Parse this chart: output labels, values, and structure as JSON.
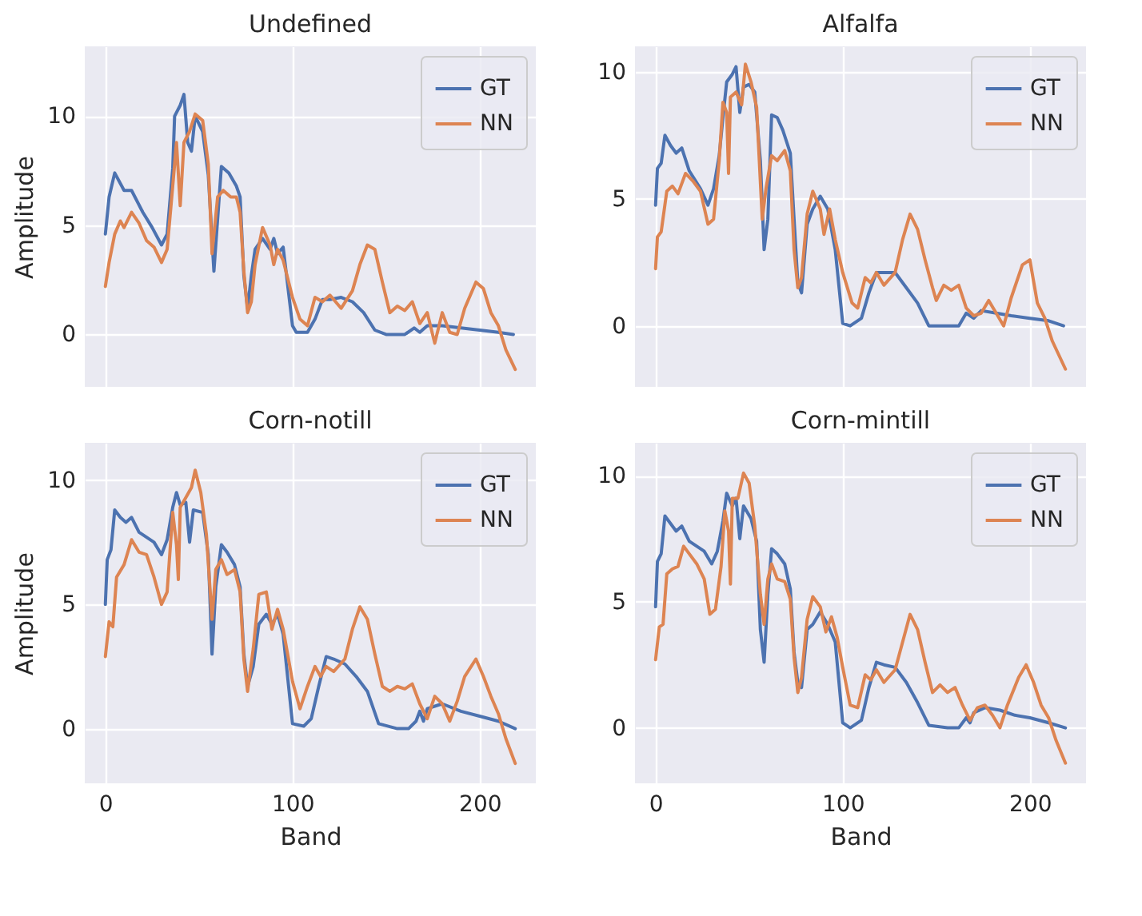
{
  "chart_data": [
    {
      "type": "line",
      "title": "Undefined",
      "ylabel": "Amplitude",
      "xlim": [
        -11,
        230
      ],
      "ylim": [
        -2.4,
        13.2
      ],
      "xticks": [
        0,
        100,
        200
      ],
      "yticks": [
        0,
        5,
        10
      ],
      "grid": true,
      "legend": "top right",
      "tick_labels": "y",
      "series": [
        {
          "name": "GT",
          "color": "#4c72b0",
          "x": [
            0,
            2,
            5,
            10,
            14,
            20,
            25,
            30,
            33,
            36,
            37,
            40,
            42,
            44,
            46,
            48,
            52,
            55,
            58,
            62,
            66,
            70,
            72,
            74,
            76,
            78,
            80,
            84,
            88,
            90,
            92,
            95,
            100,
            102,
            108,
            112,
            116,
            120,
            126,
            132,
            138,
            144,
            150,
            160,
            165,
            168,
            172,
            180,
            190,
            200,
            210,
            218
          ],
          "values": [
            4.6,
            6.3,
            7.4,
            6.6,
            6.6,
            5.6,
            4.9,
            4.1,
            4.6,
            7.6,
            10.0,
            10.5,
            11.0,
            8.8,
            8.4,
            10.0,
            9.3,
            7.3,
            2.9,
            7.7,
            7.4,
            6.8,
            6.3,
            2.7,
            1.2,
            2.7,
            3.9,
            4.4,
            3.9,
            4.4,
            3.7,
            4.0,
            0.4,
            0.1,
            0.1,
            0.7,
            1.6,
            1.6,
            1.7,
            1.5,
            1.0,
            0.2,
            0.0,
            0.0,
            0.3,
            0.1,
            0.4,
            0.4,
            0.3,
            0.2,
            0.1,
            0.0
          ]
        },
        {
          "name": "NN",
          "color": "#dd8452",
          "x": [
            0,
            2,
            5,
            8,
            10,
            14,
            18,
            22,
            26,
            30,
            33,
            36,
            38,
            40,
            42,
            45,
            48,
            52,
            55,
            57,
            60,
            63,
            67,
            70,
            72,
            74,
            76,
            78,
            80,
            84,
            88,
            90,
            92,
            95,
            100,
            104,
            108,
            112,
            116,
            120,
            126,
            132,
            136,
            140,
            144,
            148,
            152,
            156,
            160,
            164,
            168,
            172,
            176,
            180,
            184,
            188,
            192,
            198,
            202,
            206,
            210,
            214,
            219
          ],
          "values": [
            2.2,
            3.3,
            4.6,
            5.2,
            4.9,
            5.6,
            5.1,
            4.3,
            4.0,
            3.3,
            3.9,
            6.8,
            8.8,
            5.9,
            8.8,
            9.3,
            10.1,
            9.8,
            7.8,
            3.7,
            6.3,
            6.6,
            6.3,
            6.3,
            5.6,
            2.9,
            1.0,
            1.5,
            3.2,
            4.9,
            4.1,
            3.2,
            3.9,
            3.4,
            1.7,
            0.7,
            0.4,
            1.7,
            1.5,
            1.8,
            1.2,
            2.0,
            3.2,
            4.1,
            3.9,
            2.4,
            1.0,
            1.3,
            1.1,
            1.5,
            0.5,
            1.0,
            -0.4,
            1.0,
            0.1,
            0.0,
            1.2,
            2.4,
            2.1,
            1.0,
            0.4,
            -0.7,
            -1.6
          ]
        }
      ]
    },
    {
      "type": "line",
      "title": "Alfalfa",
      "xlim": [
        -11,
        230
      ],
      "ylim": [
        -2.4,
        11.0
      ],
      "xticks": [
        0,
        100,
        200
      ],
      "yticks": [
        0,
        5,
        10
      ],
      "grid": true,
      "legend": "top right",
      "tick_labels": "y",
      "series": [
        {
          "name": "GT",
          "color": "#4c72b0",
          "x": [
            0,
            1,
            3,
            5,
            8,
            11,
            14,
            18,
            24,
            28,
            31,
            34,
            36,
            38,
            41,
            43,
            45,
            47,
            50,
            53,
            56,
            58,
            60,
            62,
            65,
            68,
            72,
            74,
            76,
            78,
            81,
            84,
            88,
            92,
            96,
            100,
            104,
            110,
            114,
            118,
            122,
            128,
            134,
            140,
            146,
            156,
            162,
            166,
            170,
            174,
            182,
            190,
            200,
            210,
            218
          ],
          "values": [
            4.75,
            6.2,
            6.4,
            7.5,
            7.1,
            6.8,
            7.0,
            6.1,
            5.4,
            4.75,
            5.4,
            6.7,
            8.2,
            9.6,
            9.9,
            10.2,
            8.4,
            9.4,
            9.5,
            9.2,
            6.5,
            3.0,
            4.2,
            8.3,
            8.2,
            7.7,
            6.8,
            4.2,
            1.7,
            1.3,
            4.0,
            4.6,
            5.1,
            4.6,
            3.0,
            0.1,
            0.0,
            0.3,
            1.3,
            2.1,
            2.1,
            2.1,
            1.5,
            0.9,
            0.0,
            0.0,
            0.0,
            0.5,
            0.3,
            0.6,
            0.5,
            0.4,
            0.3,
            0.2,
            0.0
          ]
        },
        {
          "name": "NN",
          "color": "#dd8452",
          "x": [
            0,
            1,
            3,
            6,
            9,
            12,
            16,
            20,
            24,
            28,
            31,
            34,
            36,
            38,
            39,
            40,
            43,
            46,
            48,
            51,
            54,
            57,
            59,
            62,
            65,
            69,
            72,
            74,
            76,
            78,
            81,
            84,
            88,
            90,
            93,
            96,
            100,
            105,
            108,
            112,
            115,
            118,
            122,
            128,
            132,
            136,
            140,
            144,
            148,
            150,
            154,
            158,
            162,
            166,
            170,
            174,
            178,
            182,
            186,
            190,
            196,
            200,
            204,
            208,
            212,
            219
          ],
          "values": [
            2.25,
            3.5,
            3.7,
            5.3,
            5.5,
            5.2,
            6.0,
            5.7,
            5.3,
            4.0,
            4.2,
            6.5,
            8.8,
            8.4,
            6.0,
            9.0,
            9.2,
            8.7,
            10.3,
            9.6,
            8.6,
            4.2,
            5.4,
            6.7,
            6.5,
            6.9,
            6.1,
            3.0,
            1.5,
            1.9,
            4.4,
            5.3,
            4.6,
            3.6,
            4.6,
            3.4,
            2.1,
            0.9,
            0.7,
            1.9,
            1.7,
            2.1,
            1.6,
            2.1,
            3.4,
            4.4,
            3.8,
            2.6,
            1.5,
            1.0,
            1.6,
            1.4,
            1.6,
            0.7,
            0.4,
            0.5,
            1.0,
            0.5,
            0.0,
            1.1,
            2.4,
            2.6,
            0.9,
            0.3,
            -0.6,
            -1.7
          ]
        }
      ]
    },
    {
      "type": "line",
      "title": "Corn-notill",
      "xlabel": "Band",
      "ylabel": "Amplitude",
      "xlim": [
        -11,
        230
      ],
      "ylim": [
        -2.2,
        11.5
      ],
      "xticks": [
        0,
        100,
        200
      ],
      "yticks": [
        0,
        5,
        10
      ],
      "grid": true,
      "legend": "top right",
      "series": [
        {
          "name": "GT",
          "color": "#4c72b0",
          "x": [
            0,
            1,
            3,
            5,
            8,
            11,
            14,
            18,
            22,
            26,
            30,
            33,
            36,
            38,
            40,
            43,
            45,
            47,
            52,
            55,
            57,
            59,
            62,
            65,
            69,
            72,
            74,
            76,
            79,
            82,
            86,
            89,
            92,
            95,
            100,
            106,
            110,
            114,
            118,
            122,
            128,
            134,
            140,
            146,
            156,
            162,
            166,
            168,
            170,
            172,
            180,
            190,
            200,
            210,
            219
          ],
          "values": [
            5.0,
            6.8,
            7.2,
            8.8,
            8.5,
            8.3,
            8.5,
            7.9,
            7.7,
            7.5,
            7.0,
            7.6,
            8.9,
            9.5,
            9.0,
            9.1,
            7.5,
            8.8,
            8.7,
            7.0,
            3.0,
            5.7,
            7.4,
            7.1,
            6.6,
            5.7,
            3.0,
            1.7,
            2.5,
            4.2,
            4.6,
            4.2,
            4.6,
            3.8,
            0.2,
            0.1,
            0.4,
            1.7,
            2.9,
            2.8,
            2.6,
            2.1,
            1.5,
            0.2,
            0.0,
            0.0,
            0.3,
            0.7,
            0.3,
            0.8,
            1.0,
            0.7,
            0.5,
            0.3,
            0.0
          ]
        },
        {
          "name": "NN",
          "color": "#dd8452",
          "x": [
            0,
            2,
            4,
            6,
            10,
            14,
            18,
            22,
            26,
            30,
            33,
            36,
            38,
            39,
            40,
            43,
            46,
            48,
            51,
            54,
            57,
            59,
            62,
            65,
            69,
            72,
            74,
            76,
            79,
            82,
            86,
            89,
            92,
            95,
            100,
            104,
            108,
            112,
            115,
            118,
            122,
            128,
            132,
            136,
            140,
            144,
            148,
            152,
            156,
            160,
            164,
            168,
            172,
            176,
            180,
            184,
            188,
            192,
            198,
            202,
            206,
            210,
            214,
            219
          ],
          "values": [
            2.9,
            4.3,
            4.1,
            6.1,
            6.6,
            7.6,
            7.1,
            7.0,
            6.1,
            5.0,
            5.5,
            8.7,
            7.4,
            6.0,
            8.9,
            9.3,
            9.7,
            10.4,
            9.5,
            7.8,
            4.4,
            6.4,
            6.8,
            6.2,
            6.4,
            5.5,
            2.8,
            1.5,
            3.2,
            5.4,
            5.5,
            4.0,
            4.8,
            4.0,
            1.9,
            0.8,
            1.7,
            2.5,
            2.1,
            2.5,
            2.3,
            2.8,
            4.0,
            4.9,
            4.4,
            3.0,
            1.7,
            1.5,
            1.7,
            1.6,
            1.8,
            1.0,
            0.4,
            1.3,
            1.0,
            0.3,
            1.1,
            2.1,
            2.8,
            2.1,
            1.3,
            0.6,
            -0.4,
            -1.4
          ]
        }
      ]
    },
    {
      "type": "line",
      "title": "Corn-mintill",
      "xlabel": "Band",
      "xlim": [
        -11,
        230
      ],
      "ylim": [
        -2.2,
        11.3
      ],
      "xticks": [
        0,
        100,
        200
      ],
      "yticks": [
        0,
        5,
        10
      ],
      "grid": true,
      "legend": "top right",
      "series": [
        {
          "name": "GT",
          "color": "#4c72b0",
          "x": [
            0,
            1,
            3,
            5,
            8,
            11,
            14,
            18,
            22,
            26,
            30,
            33,
            36,
            38,
            41,
            43,
            45,
            47,
            51,
            54,
            56,
            58,
            60,
            62,
            65,
            69,
            72,
            74,
            76,
            78,
            81,
            84,
            88,
            92,
            96,
            100,
            104,
            110,
            114,
            118,
            122,
            128,
            134,
            140,
            146,
            156,
            162,
            166,
            168,
            170,
            176,
            184,
            192,
            200,
            210,
            219
          ],
          "values": [
            4.8,
            6.6,
            6.9,
            8.4,
            8.1,
            7.8,
            8.0,
            7.4,
            7.2,
            7.0,
            6.5,
            7.0,
            8.2,
            9.3,
            8.8,
            9.1,
            7.5,
            8.8,
            8.3,
            7.4,
            3.9,
            2.6,
            5.3,
            7.1,
            6.9,
            6.5,
            5.5,
            3.0,
            1.8,
            1.6,
            3.9,
            4.1,
            4.6,
            4.1,
            3.4,
            0.2,
            0.0,
            0.3,
            1.6,
            2.6,
            2.5,
            2.4,
            1.8,
            1.0,
            0.1,
            0.0,
            0.0,
            0.4,
            0.2,
            0.6,
            0.8,
            0.7,
            0.5,
            0.4,
            0.2,
            0.0
          ]
        },
        {
          "name": "NN",
          "color": "#dd8452",
          "x": [
            0,
            2,
            4,
            6,
            9,
            12,
            15,
            18,
            22,
            26,
            29,
            32,
            35,
            37,
            39,
            40,
            41,
            44,
            47,
            50,
            53,
            56,
            58,
            60,
            62,
            65,
            69,
            72,
            74,
            76,
            78,
            81,
            84,
            88,
            91,
            94,
            97,
            100,
            104,
            108,
            112,
            115,
            118,
            122,
            128,
            132,
            136,
            140,
            144,
            148,
            152,
            156,
            160,
            164,
            168,
            172,
            176,
            180,
            184,
            188,
            194,
            198,
            202,
            206,
            210,
            214,
            219
          ],
          "values": [
            2.7,
            4.0,
            4.1,
            6.1,
            6.3,
            6.4,
            7.2,
            6.9,
            6.5,
            5.9,
            4.5,
            4.7,
            6.4,
            8.6,
            7.8,
            5.7,
            9.1,
            9.1,
            10.1,
            9.7,
            8.0,
            5.3,
            4.1,
            5.9,
            6.5,
            5.9,
            5.8,
            5.1,
            2.8,
            1.4,
            2.0,
            4.3,
            5.2,
            4.8,
            3.8,
            4.4,
            3.6,
            2.4,
            0.9,
            0.8,
            2.1,
            1.9,
            2.3,
            1.8,
            2.3,
            3.4,
            4.5,
            3.9,
            2.6,
            1.4,
            1.7,
            1.4,
            1.6,
            0.9,
            0.3,
            0.8,
            0.9,
            0.5,
            0.0,
            0.9,
            2.0,
            2.5,
            1.8,
            0.9,
            0.4,
            -0.5,
            -1.4
          ]
        }
      ]
    }
  ]
}
